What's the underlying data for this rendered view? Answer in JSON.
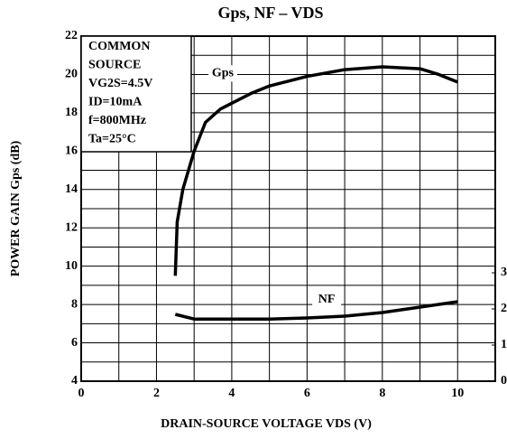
{
  "chart_data": {
    "type": "line",
    "title": "Gps, NF – VDS",
    "x_label": "DRAIN-SOURCE VOLTAGE  VDS  (V)",
    "y_label": "POWER GAIN  Gps  (dB)",
    "annotation_lines": [
      "COMMON",
      "SOURCE",
      "VG2S=4.5V",
      "ID=10mA",
      "f=800MHz",
      "Ta=25°C"
    ],
    "xlim": [
      0,
      11
    ],
    "xticks": [
      0,
      2,
      4,
      6,
      8,
      10
    ],
    "x_minor_ticks": [
      1,
      3,
      5,
      7,
      9,
      11
    ],
    "ylim": [
      4,
      22
    ],
    "yticks": [
      4,
      6,
      8,
      10,
      12,
      14,
      16,
      18,
      20,
      22
    ],
    "y_minor_ticks": [
      5,
      7,
      9,
      11,
      13,
      15,
      17,
      19,
      21
    ],
    "y2lim": [
      0,
      9.55
    ],
    "y2ticks": [
      0,
      1,
      2,
      3
    ],
    "grid": true,
    "series": [
      {
        "name": "Gps",
        "color": "#000000",
        "x": [
          2.5,
          2.55,
          2.7,
          3,
          3.3,
          3.7,
          4,
          4.5,
          5,
          6,
          7,
          8,
          9,
          9.5,
          10
        ],
        "values": [
          9.5,
          12.3,
          14,
          16,
          17.5,
          18.2,
          18.5,
          19,
          19.4,
          19.9,
          20.25,
          20.4,
          20.3,
          20,
          19.6
        ]
      },
      {
        "name": "NF",
        "color": "#000000",
        "axis": "y2",
        "x": [
          2.5,
          3,
          4,
          5,
          6,
          7,
          8,
          9,
          10
        ],
        "values": [
          1.85,
          1.72,
          1.72,
          1.72,
          1.75,
          1.8,
          1.9,
          2.05,
          2.2
        ]
      }
    ]
  }
}
